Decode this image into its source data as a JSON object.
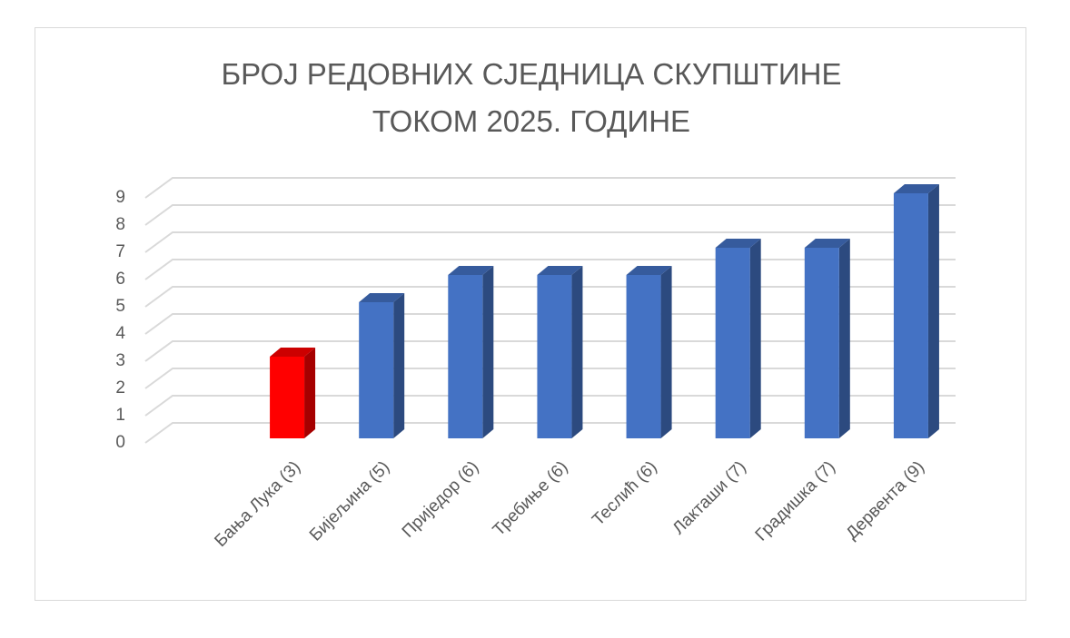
{
  "chart_data": {
    "type": "bar3d",
    "title": "БРОЈ РЕДОВНИХ СЈЕДНИЦА СКУПШТИНЕ ТОКОМ 2025. ГОДИНЕ",
    "categories": [
      "Бања Лука (3)",
      "Бијељина (5)",
      "Приједор (6)",
      "Требиње (6)",
      "Теслић (6)",
      "Лакташи (7)",
      "Градишка (7)",
      "Дервента (9)"
    ],
    "values": [
      3,
      5,
      6,
      6,
      6,
      7,
      7,
      9
    ],
    "colors": [
      "#ff0000",
      "#4472c4",
      "#4472c4",
      "#4472c4",
      "#4472c4",
      "#4472c4",
      "#4472c4",
      "#4472c4"
    ],
    "ylim": [
      0,
      9
    ],
    "yticks": [
      0,
      1,
      2,
      3,
      4,
      5,
      6,
      7,
      8,
      9
    ],
    "grid": true
  }
}
